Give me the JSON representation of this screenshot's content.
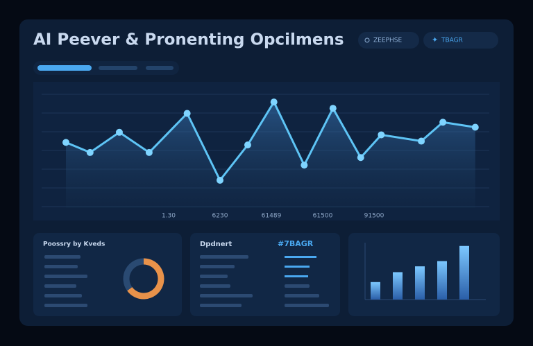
{
  "header": {
    "title": "AI Peever & Pronenting Opcilmens",
    "buttons": [
      "ZEEPHSE",
      "TBAGR"
    ]
  },
  "chart_data": [
    {
      "type": "line",
      "color": "#5ec4f5",
      "x": [
        0,
        0.47,
        1.04,
        1.62,
        2.36,
        3.0,
        3.54,
        4.05,
        4.64,
        5.2,
        5.74,
        6.14,
        6.92,
        7.34,
        7.97
      ],
      "values": [
        52,
        44,
        60,
        44,
        75,
        22,
        50,
        84,
        34,
        79,
        40,
        58,
        53,
        68,
        64
      ],
      "xlim": [
        0,
        8
      ],
      "ylim": [
        0,
        100
      ],
      "xticks": [
        {
          "value": 2,
          "label": "1.30"
        },
        {
          "value": 3,
          "label": "6230"
        },
        {
          "value": 4,
          "label": "61489"
        },
        {
          "value": 5,
          "label": "61500"
        },
        {
          "value": 6,
          "label": "91500"
        }
      ]
    },
    {
      "type": "pie",
      "title": "Poossry by Kveds",
      "categories": [
        null,
        null
      ],
      "values": [
        65,
        35
      ],
      "colors": [
        "#e8924a",
        "#2a4a72"
      ]
    },
    {
      "type": "list",
      "title": "Dpdnert",
      "subtitle": "#7BAGR"
    },
    {
      "type": "bar",
      "categories": [
        null,
        null,
        null,
        null,
        null
      ],
      "values": [
        30,
        47,
        57,
        66,
        92
      ],
      "ylim": [
        0,
        100
      ],
      "color": "#4a9ee8"
    }
  ]
}
